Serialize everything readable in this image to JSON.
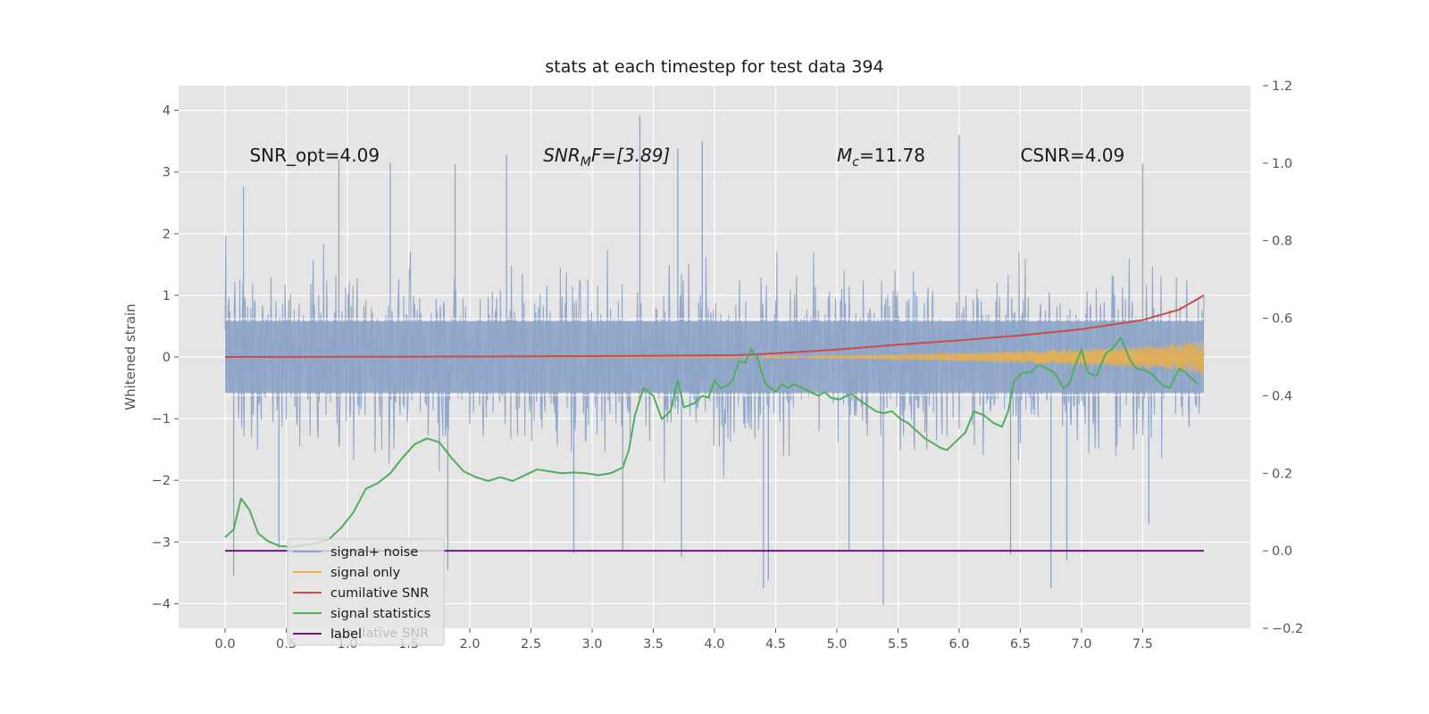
{
  "chart_data": {
    "type": "line",
    "title": "stats at each timestep for test data 394",
    "ylabel": "Whitened strain",
    "xlabel": "",
    "xlim": [
      -0.38,
      8.38
    ],
    "ylim": [
      -4.4,
      4.4
    ],
    "ylim_right": [
      -0.2,
      1.2
    ],
    "x_ticks": [
      "0.0",
      "0.5",
      "1.0",
      "1.5",
      "2.0",
      "2.5",
      "3.0",
      "3.5",
      "4.0",
      "4.5",
      "5.0",
      "5.5",
      "6.0",
      "6.5",
      "7.0",
      "7.5"
    ],
    "y_ticks": [
      "−4",
      "−3",
      "−2",
      "−1",
      "0",
      "1",
      "2",
      "3",
      "4"
    ],
    "y_ticks_right": [
      "−0.2",
      "0.0",
      "0.2",
      "0.4",
      "0.6",
      "0.8",
      "1.0",
      "1.2"
    ],
    "grid": true,
    "legend_position": "lower-left",
    "background": "#e5e5e5",
    "annotations": [
      {
        "text": "SNR_opt=4.09",
        "x": 0.2
      },
      {
        "main": "SNR",
        "sub": "M",
        "tail": "F=[3.89]",
        "x": 2.6
      },
      {
        "main": "M",
        "sub": "c",
        "tail": "=11.78",
        "x": 5.0
      },
      {
        "text": "CSNR=4.09",
        "x": 6.5
      }
    ],
    "series": [
      {
        "name": "signal+ noise",
        "axis": "left",
        "color": "#8ea4c8",
        "x_range": [
          0,
          8.0
        ],
        "band_1sigma": 0.58,
        "typical_max": 2.2,
        "typical_min": -2.1,
        "extremes": [
          {
            "x": 3.39,
            "y": 3.93
          },
          {
            "x": 6.0,
            "y": 3.6
          },
          {
            "x": 3.9,
            "y": 3.5
          },
          {
            "x": 3.7,
            "y": 3.38
          },
          {
            "x": 5.38,
            "y": -4.02
          },
          {
            "x": 4.4,
            "y": -3.75
          },
          {
            "x": 4.44,
            "y": -3.62
          },
          {
            "x": 6.75,
            "y": -3.75
          },
          {
            "x": 0.07,
            "y": -3.55
          },
          {
            "x": 1.82,
            "y": -3.45
          },
          {
            "x": 0.15,
            "y": 2.76
          },
          {
            "x": 1.88,
            "y": 3.12
          },
          {
            "x": 7.5,
            "y": 3.14
          },
          {
            "x": 7.55,
            "y": -2.7
          },
          {
            "x": 6.88,
            "y": -3.3
          },
          {
            "x": 5.1,
            "y": -3.15
          },
          {
            "x": 6.42,
            "y": -3.2
          },
          {
            "x": 2.85,
            "y": -3.18
          },
          {
            "x": 3.25,
            "y": -3.15
          },
          {
            "x": 3.73,
            "y": -3.25
          },
          {
            "x": 0.44,
            "y": -3.1
          },
          {
            "x": 2.3,
            "y": 3.28
          },
          {
            "x": 1.35,
            "y": 3.15
          },
          {
            "x": 0.93,
            "y": 3.2
          }
        ]
      },
      {
        "name": "signal only",
        "axis": "left",
        "color": "#e8b04f",
        "x_range": [
          0,
          8.0
        ],
        "envelope": [
          [
            4.4,
            0.01
          ],
          [
            5.0,
            0.03
          ],
          [
            5.5,
            0.05
          ],
          [
            6.0,
            0.07
          ],
          [
            6.5,
            0.1
          ],
          [
            7.0,
            0.13
          ],
          [
            7.5,
            0.18
          ],
          [
            7.8,
            0.22
          ],
          [
            8.0,
            0.28
          ]
        ]
      },
      {
        "name": "cumilative SNR",
        "axis": "left",
        "color": "#cc4a4a",
        "x": [
          0,
          0.5,
          1.0,
          1.5,
          2.0,
          2.5,
          3.0,
          3.5,
          4.0,
          4.2,
          4.5,
          5.0,
          5.5,
          6.0,
          6.5,
          7.0,
          7.5,
          7.8,
          8.0
        ],
        "values": [
          0,
          0.002,
          0.004,
          0.006,
          0.008,
          0.011,
          0.015,
          0.02,
          0.027,
          0.03,
          0.06,
          0.12,
          0.2,
          0.27,
          0.35,
          0.45,
          0.6,
          0.77,
          1.0
        ]
      },
      {
        "name": "signal statistics",
        "axis": "right",
        "color": "#4fae5f",
        "x": [
          0,
          0.07,
          0.13,
          0.2,
          0.27,
          0.35,
          0.45,
          0.55,
          0.65,
          0.75,
          0.85,
          0.95,
          1.05,
          1.15,
          1.25,
          1.35,
          1.45,
          1.55,
          1.65,
          1.75,
          1.85,
          1.95,
          2.05,
          2.15,
          2.25,
          2.35,
          2.45,
          2.55,
          2.65,
          2.75,
          2.85,
          2.95,
          3.05,
          3.15,
          3.25,
          3.3,
          3.35,
          3.42,
          3.5,
          3.57,
          3.64,
          3.7,
          3.75,
          3.83,
          3.9,
          3.95,
          4.0,
          4.05,
          4.1,
          4.15,
          4.2,
          4.25,
          4.3,
          4.35,
          4.38,
          4.42,
          4.5,
          4.55,
          4.6,
          4.65,
          4.72,
          4.78,
          4.85,
          4.9,
          4.95,
          5.02,
          5.08,
          5.12,
          5.18,
          5.25,
          5.32,
          5.38,
          5.45,
          5.52,
          5.58,
          5.65,
          5.72,
          5.8,
          5.85,
          5.9,
          5.95,
          6.0,
          6.05,
          6.12,
          6.2,
          6.28,
          6.35,
          6.4,
          6.45,
          6.52,
          6.58,
          6.65,
          6.72,
          6.78,
          6.85,
          6.9,
          6.95,
          7.0,
          7.05,
          7.12,
          7.2,
          7.25,
          7.32,
          7.4,
          7.45,
          7.52,
          7.58,
          7.65,
          7.72,
          7.8,
          7.85,
          7.95
        ],
        "values": [
          0.035,
          0.055,
          0.135,
          0.105,
          0.045,
          0.025,
          0.012,
          0.01,
          0.015,
          0.02,
          0.03,
          0.06,
          0.1,
          0.16,
          0.175,
          0.2,
          0.24,
          0.275,
          0.29,
          0.28,
          0.24,
          0.205,
          0.19,
          0.18,
          0.19,
          0.18,
          0.195,
          0.21,
          0.205,
          0.2,
          0.202,
          0.2,
          0.195,
          0.2,
          0.215,
          0.26,
          0.35,
          0.42,
          0.4,
          0.34,
          0.36,
          0.44,
          0.37,
          0.38,
          0.4,
          0.395,
          0.44,
          0.42,
          0.425,
          0.44,
          0.49,
          0.485,
          0.52,
          0.5,
          0.465,
          0.43,
          0.41,
          0.43,
          0.42,
          0.43,
          0.42,
          0.41,
          0.4,
          0.41,
          0.395,
          0.39,
          0.4,
          0.405,
          0.39,
          0.375,
          0.36,
          0.355,
          0.36,
          0.34,
          0.33,
          0.31,
          0.29,
          0.275,
          0.265,
          0.26,
          0.275,
          0.29,
          0.305,
          0.36,
          0.35,
          0.33,
          0.32,
          0.36,
          0.44,
          0.46,
          0.46,
          0.48,
          0.47,
          0.46,
          0.42,
          0.43,
          0.48,
          0.52,
          0.46,
          0.45,
          0.51,
          0.52,
          0.55,
          0.49,
          0.47,
          0.465,
          0.455,
          0.43,
          0.42,
          0.47,
          0.46,
          0.43
        ]
      },
      {
        "name": "label",
        "axis": "right",
        "color": "#6a1a7a",
        "x": [
          0,
          8.0
        ],
        "values": [
          0.0,
          0.0
        ]
      }
    ],
    "legend_ghost_text": "cumilative SNR"
  },
  "icons": {
    "legend_swatch": "line-swatch"
  }
}
